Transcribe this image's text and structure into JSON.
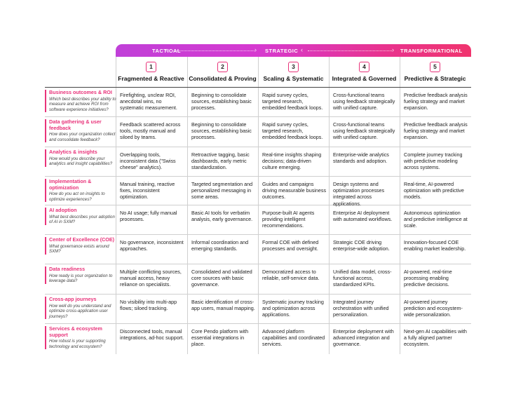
{
  "phases": [
    "TACTICAL",
    "STRATEGIC",
    "TRANSFORMATIONAL"
  ],
  "columns": [
    {
      "num": "1",
      "title": "Fragmented & Reactive"
    },
    {
      "num": "2",
      "title": "Consolidated & Proving"
    },
    {
      "num": "3",
      "title": "Scaling & Systematic"
    },
    {
      "num": "4",
      "title": "Integrated & Governed"
    },
    {
      "num": "5",
      "title": "Predictive & Strategic"
    }
  ],
  "rows": [
    {
      "title": "Business outcomes & ROI",
      "question": "Which best describes your ability to measure and achieve ROI from software experience initiatives?",
      "cells": [
        "Firefighting, unclear ROI, anecdotal wins, no systematic measurement.",
        "Beginning to consolidate sources, establishing basic processes.",
        "Rapid survey cycles, targeted research, embedded feedback loops.",
        "Cross-functional teams using feedback strategically with unified capture.",
        "Predictive feedback analysis fueling strategy and market expansion."
      ]
    },
    {
      "title": "Data gathering & user feedback",
      "question": "How does your organization collect and consolidate feedback?",
      "cells": [
        "Feedback scattered across tools, mostly manual and siloed by teams.",
        "Beginning to consolidate sources, establishing basic processes.",
        "Rapid survey cycles, targeted research, embedded feedback loops.",
        "Cross-functional teams using feedback strategically with unified capture.",
        "Predictive feedback analysis fueling strategy and market expansion."
      ]
    },
    {
      "title": "Analytics & insights",
      "question": "How would you describe your analytics and insight capabilities?",
      "cells": [
        "Overlapping tools, inconsistent data (\"Swiss cheese\" analytics).",
        "Retroactive tagging, basic dashboards, early metric standardization.",
        "Real-time insights shaping decisions; data-driven culture emerging.",
        "Enterprise-wide analytics standards and adoption.",
        "Complete journey tracking with predictive modeling across systems."
      ]
    },
    {
      "title": "Implementation & optimization",
      "question": "How do you act on insights to optimize experiences?",
      "cells": [
        "Manual training, reactive fixes, inconsistent optimization.",
        "Targeted segmentation and personalized messaging in some areas.",
        "Guides and campaigns driving measurable business outcomes.",
        "Design systems and optimization processes integrated across applications.",
        "Real-time, AI-powered optimization with predictive models."
      ]
    },
    {
      "title": "AI adoption",
      "question": "What best describes your adoption of AI in SXM?",
      "cells": [
        "No AI usage; fully manual processes.",
        "Basic AI tools for verbatim analysis, early governance.",
        "Purpose-built AI agents providing intelligent recommendations.",
        "Enterprise AI deployment with automated workflows.",
        "Autonomous optimization and predictive intelligence at scale."
      ]
    },
    {
      "title": "Center of Excellence (COE)",
      "question": "What governance exists around SXM?",
      "cells": [
        "No governance, inconsistent approaches.",
        "Informal coordination and emerging standards.",
        "Formal COE with defined processes and oversight.",
        "Strategic COE driving enterprise-wide adoption.",
        "Innovation-focused COE enabling market leadership."
      ]
    },
    {
      "title": "Data readiness",
      "question": "How ready is your organization to leverage data?",
      "cells": [
        "Multiple conflicting sources, manual access, heavy reliance on specialists.",
        "Consolidated and validated core sources with basic governance.",
        "Democratized access to reliable, self-service data.",
        "Unified data model, cross-functional access, standardized KPIs.",
        "AI-powered, real-time processing enabling predictive decisions."
      ]
    },
    {
      "title": "Cross-app journeys",
      "question": "How well do you understand and optimize cross-application user journeys?",
      "cells": [
        "No visibility into multi-app flows; siloed tracking.",
        "Basic identification of cross-app users, manual mapping.",
        "Systematic journey tracking and optimization across applications.",
        "Integrated journey orchestration with unified personalization.",
        "AI-powered journey prediction and ecosystem-wide personalization."
      ]
    },
    {
      "title": "Services & ecosystem support",
      "question": "How robust is your supporting technology and ecosystem?",
      "cells": [
        "Disconnected tools, manual integrations, ad-hoc support.",
        "Core Pendo platform with essential integrations in place.",
        "Advanced platform capabilities and coordinated services.",
        "Enterprise deployment with advanced integration and governance.",
        "Next-gen AI capabilities with a fully aligned partner ecosystem."
      ]
    }
  ]
}
